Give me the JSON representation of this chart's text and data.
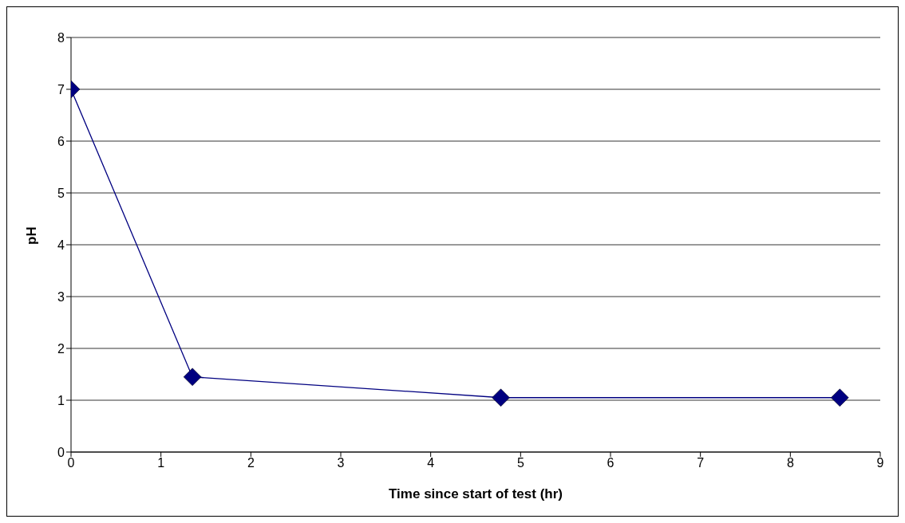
{
  "chart_data": {
    "type": "line",
    "xlabel": "Time since start of test (hr)",
    "ylabel": "pH",
    "x": [
      0,
      1.35,
      4.78,
      8.55
    ],
    "series": [
      {
        "color": "#000080",
        "values": [
          7,
          1.45,
          1.05,
          1.05
        ]
      }
    ],
    "xlim": [
      0,
      9
    ],
    "xticks": [
      0,
      1,
      2,
      3,
      4,
      5,
      6,
      7,
      8,
      9
    ],
    "ylim": [
      0,
      8
    ],
    "yticks": [
      0,
      1,
      2,
      3,
      4,
      5,
      6,
      7,
      8
    ],
    "grid": "y",
    "legend": false,
    "marker": "diamond",
    "line_style": "solid"
  }
}
